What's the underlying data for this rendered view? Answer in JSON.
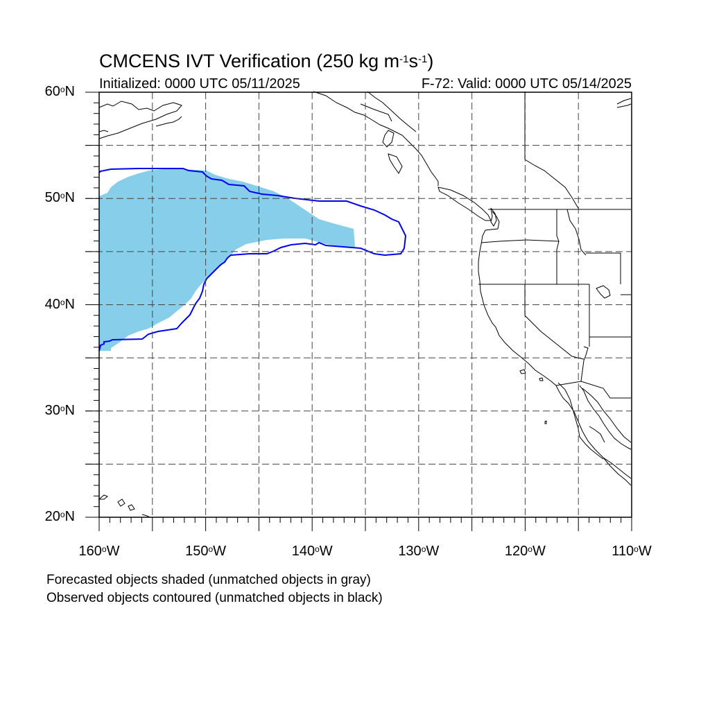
{
  "map": {
    "title_prefix": "CMCENS IVT Verification (250 kg m",
    "title_exp1": "-1",
    "title_mid": "s",
    "title_exp2": "-1",
    "title_suffix": ")",
    "init_text": "Initialized: 0000 UTC 05/11/2025",
    "valid_text": "F-72: Valid: 0000 UTC 05/14/2025",
    "extent": {
      "lon_min": -160,
      "lon_max": -110,
      "lat_min": 20,
      "lat_max": 60
    },
    "lat_labels": [
      {
        "value": 60,
        "text": "60",
        "suffix": "N"
      },
      {
        "value": 50,
        "text": "50",
        "suffix": "N"
      },
      {
        "value": 40,
        "text": "40",
        "suffix": "N"
      },
      {
        "value": 30,
        "text": "30",
        "suffix": "N"
      },
      {
        "value": 20,
        "text": "20",
        "suffix": "N"
      }
    ],
    "lon_labels": [
      {
        "value": -160,
        "text": "160",
        "suffix": "W"
      },
      {
        "value": -150,
        "text": "150",
        "suffix": "W"
      },
      {
        "value": -140,
        "text": "140",
        "suffix": "W"
      },
      {
        "value": -130,
        "text": "130",
        "suffix": "W"
      },
      {
        "value": -120,
        "text": "120",
        "suffix": "W"
      },
      {
        "value": -110,
        "text": "110",
        "suffix": "W"
      }
    ],
    "grid_lons": [
      -155,
      -150,
      -145,
      -140,
      -135,
      -130,
      -125,
      -120,
      -115
    ],
    "grid_lats": [
      25,
      30,
      35,
      40,
      45,
      50,
      55
    ],
    "note_forecast": "Forecasted objects shaded (unmatched objects in gray)",
    "note_observed": "Observed objects contoured (unmatched objects in black)",
    "colors": {
      "forecast_fill": "#87ceeb",
      "observed_contour": "#0000ee",
      "coast": "#000000"
    }
  }
}
